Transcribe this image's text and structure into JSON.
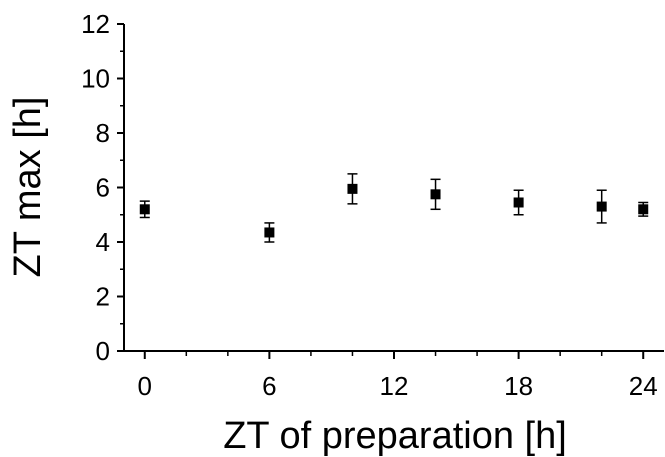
{
  "chart_data": {
    "type": "scatter",
    "title": "",
    "xlabel": "ZT of preparation [h]",
    "ylabel": "ZT max [h]",
    "xlim": [
      -1,
      25
    ],
    "ylim": [
      0,
      12
    ],
    "xticks": [
      0,
      6,
      12,
      18,
      24
    ],
    "yticks": [
      0,
      2,
      4,
      6,
      8,
      10,
      12
    ],
    "grid": false,
    "legend": "none",
    "marker": "square",
    "color": "#000000",
    "series": [
      {
        "x": [
          0,
          6,
          10,
          14,
          18,
          22,
          24
        ],
        "y": [
          5.2,
          4.35,
          5.95,
          5.75,
          5.45,
          5.3,
          5.2
        ],
        "yerr": [
          0.3,
          0.35,
          0.55,
          0.55,
          0.45,
          0.6,
          0.25
        ]
      }
    ]
  }
}
